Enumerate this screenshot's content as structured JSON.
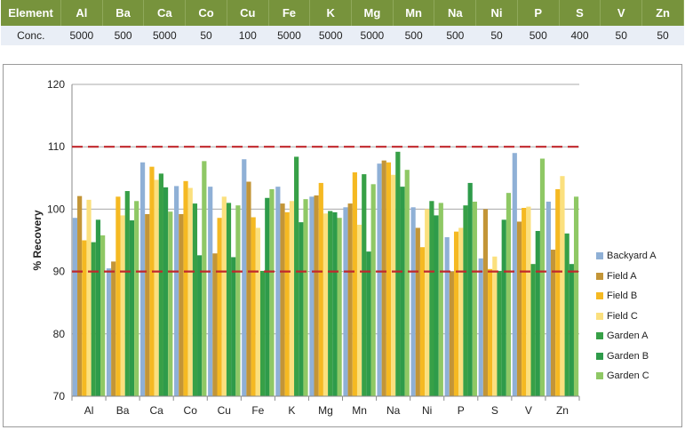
{
  "table": {
    "headers": [
      "Element",
      "Al",
      "Ba",
      "Ca",
      "Co",
      "Cu",
      "Fe",
      "K",
      "Mg",
      "Mn",
      "Na",
      "Ni",
      "P",
      "S",
      "V",
      "Zn"
    ],
    "row": [
      "Conc.",
      "5000",
      "500",
      "5000",
      "50",
      "100",
      "5000",
      "5000",
      "5000",
      "500",
      "500",
      "50",
      "500",
      "400",
      "50",
      "50"
    ]
  },
  "chart_data": {
    "type": "bar",
    "title": "",
    "xlabel": "",
    "ylabel": "% Recovery",
    "ylim": [
      70,
      120
    ],
    "yticks": [
      "70",
      "80",
      "90",
      "100",
      "110",
      "120"
    ],
    "categories": [
      "Al",
      "Ba",
      "Ca",
      "Co",
      "Cu",
      "Fe",
      "K",
      "Mg",
      "Mn",
      "Na",
      "Ni",
      "P",
      "S",
      "V",
      "Zn"
    ],
    "reference_lines": [
      110,
      90
    ],
    "reference_line_color": "#c0282d",
    "grid": true,
    "legend_position": "right",
    "series": [
      {
        "name": "Backyard A",
        "color": "#8fb0d6",
        "values": [
          98.6,
          90.5,
          107.5,
          103.7,
          103.6,
          108.0,
          103.6,
          102.0,
          100.3,
          107.3,
          100.3,
          95.5,
          92.1,
          109.0,
          101.2
        ]
      },
      {
        "name": "Field A",
        "color": "#c39537",
        "values": [
          102.1,
          91.6,
          99.2,
          99.2,
          92.9,
          104.4,
          100.9,
          102.2,
          100.9,
          107.8,
          97.0,
          90.0,
          100.0,
          98.0,
          93.5
        ]
      },
      {
        "name": "Field B",
        "color": "#f5b922",
        "values": [
          95.0,
          102.0,
          106.8,
          104.5,
          98.6,
          98.7,
          99.5,
          104.2,
          105.9,
          107.5,
          93.9,
          96.4,
          90.4,
          100.2,
          103.2
        ]
      },
      {
        "name": "Field C",
        "color": "#fbe07e",
        "values": [
          101.5,
          99.0,
          104.7,
          103.4,
          102.0,
          97.0,
          101.3,
          99.3,
          97.5,
          105.5,
          100.0,
          97.0,
          92.4,
          100.4,
          105.3
        ]
      },
      {
        "name": "Garden A",
        "color": "#37a047",
        "values": [
          94.7,
          102.9,
          105.7,
          100.9,
          101.0,
          90.1,
          108.4,
          99.7,
          105.6,
          109.2,
          101.3,
          100.6,
          90.1,
          91.2,
          96.1
        ]
      },
      {
        "name": "Garden B",
        "color": "#2e9b4a",
        "values": [
          98.3,
          98.2,
          103.5,
          92.6,
          92.3,
          101.8,
          97.9,
          99.5,
          93.2,
          103.6,
          99.0,
          104.2,
          98.3,
          96.5,
          91.2
        ]
      },
      {
        "name": "Garden C",
        "color": "#8fc865",
        "values": [
          95.8,
          101.3,
          99.6,
          107.7,
          100.6,
          103.2,
          101.6,
          98.6,
          104.0,
          106.3,
          101.0,
          101.2,
          102.6,
          108.1,
          102.0
        ]
      }
    ]
  }
}
